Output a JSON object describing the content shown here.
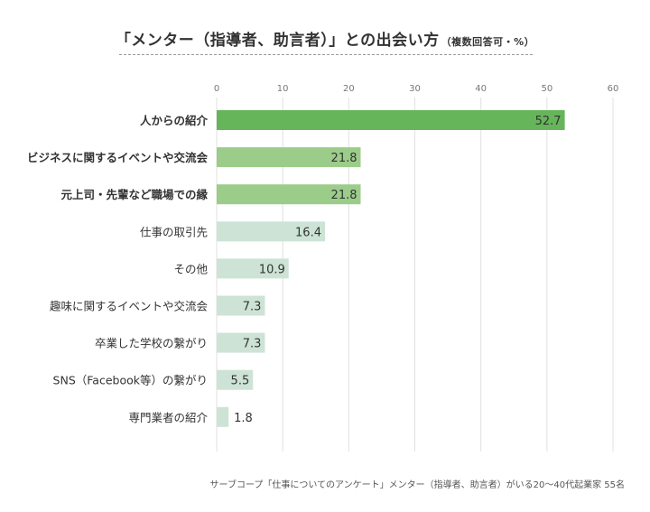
{
  "title": {
    "main": "「メンター（指導者、助言者）」との出会い方",
    "sub": "（複数回答可・%）"
  },
  "source": "サーブコープ「仕事についてのアンケート」メンター（指導者、助言者）がいる20〜40代起業家 55名",
  "colors": {
    "strong": "#66b55a",
    "medium": "#9ccc8a",
    "light": "#cde3d6",
    "grid": "#e0e0e0",
    "label_on_bar": "#333333"
  },
  "chart_data": {
    "type": "bar",
    "orientation": "horizontal",
    "xlim": [
      0,
      60
    ],
    "xticks": [
      "0",
      "10",
      "20",
      "30",
      "40",
      "50",
      "60"
    ],
    "grid": true,
    "categories": [
      "人からの紹介",
      "ビジネスに関するイベントや交流会",
      "元上司・先輩など職場での縁",
      "仕事の取引先",
      "その他",
      "趣味に関するイベントや交流会",
      "卒業した学校の繋がり",
      "SNS（Facebook等）の繋がり",
      "専門業者の紹介"
    ],
    "values": [
      52.7,
      21.8,
      21.8,
      16.4,
      10.9,
      7.3,
      7.3,
      5.5,
      1.8
    ],
    "value_labels": [
      "52.7",
      "21.8",
      "21.8",
      "16.4",
      "10.9",
      "7.3",
      "7.3",
      "5.5",
      "1.8"
    ],
    "emphasis": [
      "strong",
      "medium",
      "medium",
      "light",
      "light",
      "light",
      "light",
      "light",
      "light"
    ],
    "bold_labels": [
      true,
      true,
      true,
      false,
      false,
      false,
      false,
      false,
      false
    ]
  }
}
